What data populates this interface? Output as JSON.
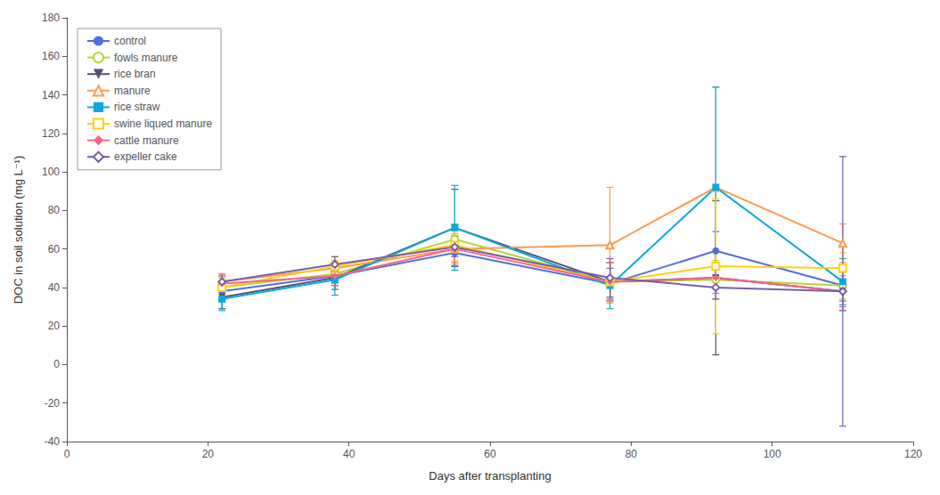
{
  "chart_data": {
    "type": "line",
    "x": [
      22,
      38,
      55,
      77,
      92,
      110
    ],
    "xlabel": "Days after transplanting",
    "ylabel": "DOC in soil solution (mg L⁻¹)",
    "xlim": [
      0,
      120
    ],
    "ylim": [
      -40,
      180
    ],
    "xticks": [
      0,
      20,
      40,
      60,
      80,
      100,
      120
    ],
    "yticks": [
      -40,
      -20,
      0,
      20,
      40,
      60,
      80,
      100,
      120,
      140,
      160,
      180
    ],
    "grid": false,
    "legend": "upper left",
    "series": [
      {
        "name": "control",
        "values": [
          38,
          46,
          58,
          42,
          59,
          41
        ],
        "yerr": [
          5,
          5,
          7,
          8,
          10,
          8
        ],
        "marker": "circle"
      },
      {
        "name": "fowls manure",
        "values": [
          40,
          47,
          65,
          43,
          44,
          41
        ],
        "yerr": [
          5,
          5,
          8,
          10,
          10,
          7
        ],
        "marker": "circle-open"
      },
      {
        "name": "rice bran",
        "values": [
          35,
          45,
          71,
          43,
          45,
          38
        ],
        "yerr": [
          6,
          6,
          20,
          10,
          40,
          10
        ],
        "marker": "triangle-down"
      },
      {
        "name": "manure",
        "values": [
          43,
          50,
          60,
          62,
          92,
          63
        ],
        "yerr": [
          4,
          4,
          8,
          30,
          52,
          10
        ],
        "marker": "triangle-up-open"
      },
      {
        "name": "rice straw",
        "values": [
          34,
          44,
          71,
          41,
          92,
          43
        ],
        "yerr": [
          6,
          8,
          22,
          12,
          52,
          12
        ],
        "marker": "square"
      },
      {
        "name": "swine liqued manure",
        "values": [
          40,
          51,
          62,
          43,
          51,
          50
        ],
        "yerr": [
          5,
          5,
          8,
          10,
          35,
          8
        ],
        "marker": "square-open"
      },
      {
        "name": "cattle manure",
        "values": [
          42,
          46,
          60,
          43,
          45,
          38
        ],
        "yerr": [
          5,
          5,
          7,
          10,
          8,
          8
        ],
        "marker": "diamond"
      },
      {
        "name": "expeller cake",
        "values": [
          43,
          52,
          61,
          45,
          40,
          38
        ],
        "yerr": [
          3,
          4,
          5,
          10,
          6,
          70
        ],
        "marker": "diamond-open"
      }
    ]
  }
}
